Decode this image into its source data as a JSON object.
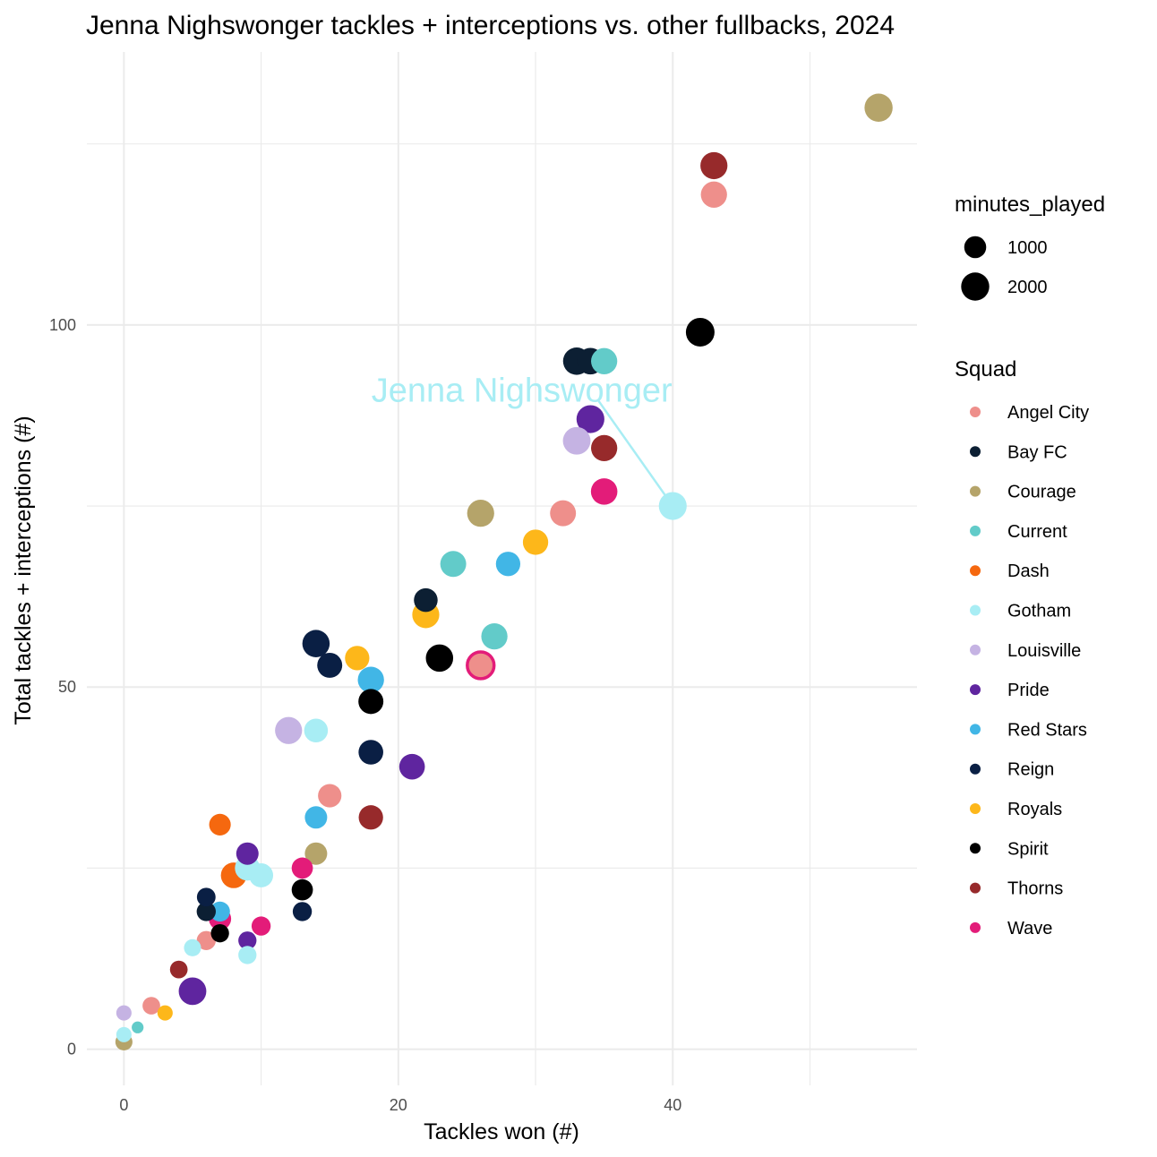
{
  "chart_data": {
    "type": "scatter",
    "title": "Jenna Nighswonger tackles + interceptions vs. other fullbacks, 2024",
    "xlabel": "Tackles won (#)",
    "ylabel": "Total tackles + interceptions (#)",
    "xlim": [
      -2.7,
      57.8
    ],
    "ylim": [
      -5,
      137.7
    ],
    "x_ticks": [
      0,
      20,
      40
    ],
    "y_ticks": [
      0,
      50,
      100
    ],
    "grid": true,
    "size_legend": {
      "title": "minutes_played",
      "entries": [
        {
          "label": "1000",
          "value": 1000
        },
        {
          "label": "2000",
          "value": 2000
        }
      ]
    },
    "color_legend": {
      "title": "Squad",
      "placement": "right",
      "entries": [
        {
          "label": "Angel City",
          "color": "#ee8f8b"
        },
        {
          "label": "Bay FC",
          "color": "#0c1f33"
        },
        {
          "label": "Courage",
          "color": "#b5a46a"
        },
        {
          "label": "Current",
          "color": "#62cbc9"
        },
        {
          "label": "Dash",
          "color": "#f5680f"
        },
        {
          "label": "Gotham",
          "color": "#a8edf4"
        },
        {
          "label": "Louisville",
          "color": "#c5b3e3"
        },
        {
          "label": "Pride",
          "color": "#5f259f"
        },
        {
          "label": "Red Stars",
          "color": "#41b6e6"
        },
        {
          "label": "Reign",
          "color": "#0a1f44"
        },
        {
          "label": "Royals",
          "color": "#fdb71a"
        },
        {
          "label": "Spirit",
          "color": "#000000"
        },
        {
          "label": "Thorns",
          "color": "#972a2b"
        },
        {
          "label": "Wave",
          "color": "#e31c79"
        }
      ]
    },
    "highlight": {
      "label": "Jenna Nighswonger",
      "squad": "Gotham",
      "x": 40,
      "y": 75,
      "label_x": 29,
      "label_y": 91,
      "color": "#a8edf4"
    },
    "points": [
      {
        "squad": "Courage",
        "x": 55,
        "y": 130,
        "minutes": 2000
      },
      {
        "squad": "Thorns",
        "x": 43,
        "y": 122,
        "minutes": 1800
      },
      {
        "squad": "Angel City",
        "x": 43,
        "y": 118,
        "minutes": 1650
      },
      {
        "squad": "Spirit",
        "x": 42,
        "y": 99,
        "minutes": 2100
      },
      {
        "squad": "Current",
        "x": 35,
        "y": 95,
        "minutes": 1650
      },
      {
        "squad": "Bay FC",
        "x": 33,
        "y": 95,
        "minutes": 1850
      },
      {
        "squad": "Bay FC",
        "x": 34,
        "y": 95,
        "minutes": 1700
      },
      {
        "squad": "Pride",
        "x": 34,
        "y": 87,
        "minutes": 1950
      },
      {
        "squad": "Louisville",
        "x": 33,
        "y": 84,
        "minutes": 1900
      },
      {
        "squad": "Thorns",
        "x": 35,
        "y": 83,
        "minutes": 1650
      },
      {
        "squad": "Wave",
        "x": 35,
        "y": 77,
        "minutes": 1700
      },
      {
        "squad": "Gotham",
        "x": 40,
        "y": 75,
        "minutes": 1950
      },
      {
        "squad": "Courage",
        "x": 26,
        "y": 74,
        "minutes": 1800
      },
      {
        "squad": "Angel City",
        "x": 32,
        "y": 74,
        "minutes": 1600
      },
      {
        "squad": "Royals",
        "x": 30,
        "y": 70,
        "minutes": 1500
      },
      {
        "squad": "Current",
        "x": 24,
        "y": 67,
        "minutes": 1600
      },
      {
        "squad": "Red Stars",
        "x": 28,
        "y": 67,
        "minutes": 1350
      },
      {
        "squad": "Bay FC",
        "x": 22,
        "y": 62,
        "minutes": 1250
      },
      {
        "squad": "Royals",
        "x": 22,
        "y": 60,
        "minutes": 1800
      },
      {
        "squad": "Current",
        "x": 27,
        "y": 57,
        "minutes": 1650
      },
      {
        "squad": "Reign",
        "x": 14,
        "y": 56,
        "minutes": 1850
      },
      {
        "squad": "Spirit",
        "x": 23,
        "y": 54,
        "minutes": 1850
      },
      {
        "squad": "Royals",
        "x": 17,
        "y": 54,
        "minutes": 1350
      },
      {
        "squad": "Reign",
        "x": 15,
        "y": 53,
        "minutes": 1450
      },
      {
        "squad": "Angel City",
        "x": 26,
        "y": 53,
        "minutes": 1750,
        "outline": "#e31c79"
      },
      {
        "squad": "Red Stars",
        "x": 18,
        "y": 51,
        "minutes": 1650
      },
      {
        "squad": "Spirit",
        "x": 18,
        "y": 48,
        "minutes": 1450
      },
      {
        "squad": "Louisville",
        "x": 12,
        "y": 44,
        "minutes": 1800
      },
      {
        "squad": "Gotham",
        "x": 14,
        "y": 44,
        "minutes": 1250
      },
      {
        "squad": "Reign",
        "x": 18,
        "y": 41,
        "minutes": 1400
      },
      {
        "squad": "Pride",
        "x": 21,
        "y": 39,
        "minutes": 1550
      },
      {
        "squad": "Angel City",
        "x": 15,
        "y": 35,
        "minutes": 1200
      },
      {
        "squad": "Red Stars",
        "x": 14,
        "y": 32,
        "minutes": 1050
      },
      {
        "squad": "Thorns",
        "x": 18,
        "y": 32,
        "minutes": 1350
      },
      {
        "squad": "Dash",
        "x": 7,
        "y": 31,
        "minutes": 950
      },
      {
        "squad": "Pride",
        "x": 9,
        "y": 27,
        "minutes": 1050
      },
      {
        "squad": "Courage",
        "x": 14,
        "y": 27,
        "minutes": 1050
      },
      {
        "squad": "Wave",
        "x": 13,
        "y": 25,
        "minutes": 900
      },
      {
        "squad": "Gotham",
        "x": 9,
        "y": 25,
        "minutes": 1450
      },
      {
        "squad": "Dash",
        "x": 8,
        "y": 24,
        "minutes": 1550
      },
      {
        "squad": "Gotham",
        "x": 10,
        "y": 24,
        "minutes": 1300
      },
      {
        "squad": "Spirit",
        "x": 13,
        "y": 22,
        "minutes": 900
      },
      {
        "squad": "Reign",
        "x": 6,
        "y": 21,
        "minutes": 600
      },
      {
        "squad": "Bay FC",
        "x": 6,
        "y": 19,
        "minutes": 650
      },
      {
        "squad": "Red Stars",
        "x": 7,
        "y": 19,
        "minutes": 750
      },
      {
        "squad": "Reign",
        "x": 13,
        "y": 19,
        "minutes": 650
      },
      {
        "squad": "Wave",
        "x": 7,
        "y": 18,
        "minutes": 1050
      },
      {
        "squad": "Wave",
        "x": 10,
        "y": 17,
        "minutes": 650
      },
      {
        "squad": "Spirit",
        "x": 7,
        "y": 16,
        "minutes": 550
      },
      {
        "squad": "Angel City",
        "x": 6,
        "y": 15,
        "minutes": 650
      },
      {
        "squad": "Pride",
        "x": 9,
        "y": 15,
        "minutes": 550
      },
      {
        "squad": "Gotham",
        "x": 5,
        "y": 14,
        "minutes": 450
      },
      {
        "squad": "Gotham",
        "x": 9,
        "y": 13,
        "minutes": 550
      },
      {
        "squad": "Thorns",
        "x": 4,
        "y": 11,
        "minutes": 500
      },
      {
        "squad": "Pride",
        "x": 5,
        "y": 8,
        "minutes": 1900
      },
      {
        "squad": "Angel City",
        "x": 2,
        "y": 6,
        "minutes": 500
      },
      {
        "squad": "Louisville",
        "x": 0,
        "y": 5,
        "minutes": 300
      },
      {
        "squad": "Royals",
        "x": 3,
        "y": 5,
        "minutes": 300
      },
      {
        "squad": "Current",
        "x": 1,
        "y": 3,
        "minutes": 100
      },
      {
        "squad": "Gotham",
        "x": 0,
        "y": 2,
        "minutes": 300
      },
      {
        "squad": "Courage",
        "x": 0,
        "y": 1,
        "minutes": 450
      }
    ]
  }
}
